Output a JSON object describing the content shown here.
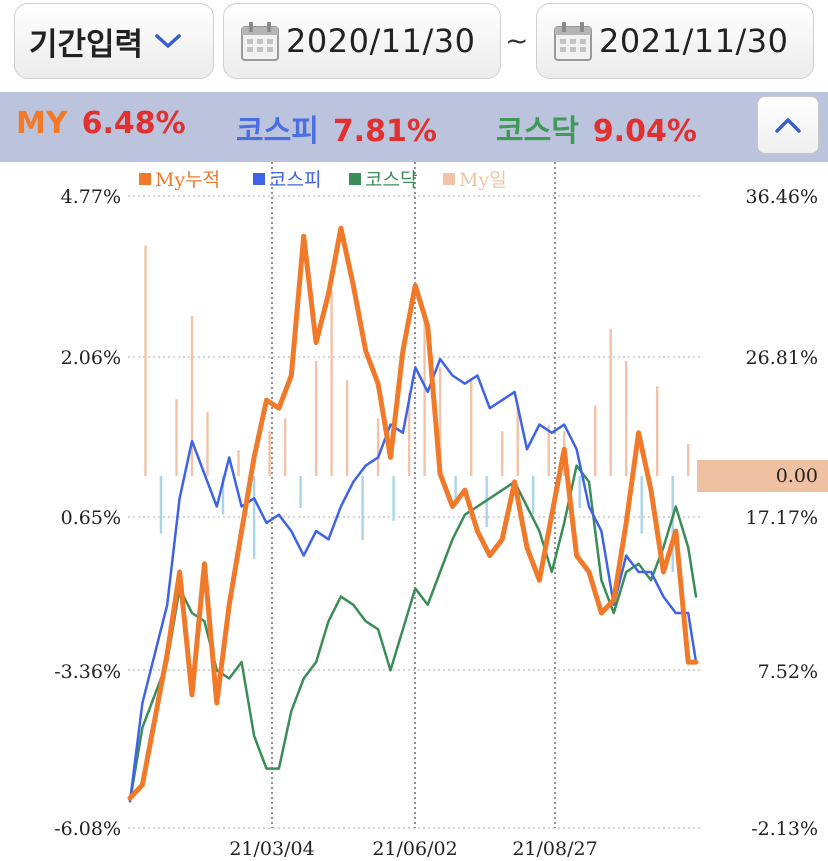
{
  "filter": {
    "period_label": "기간입력",
    "start_date": "2020/11/30",
    "separator": "~",
    "end_date": "2021/11/30"
  },
  "summary": {
    "items": [
      {
        "name": "MY",
        "value": "6.48%",
        "color": "#f07a2a"
      },
      {
        "name": "코스피",
        "value": "7.81%",
        "color": "#4a6fe3"
      },
      {
        "name": "코스닥",
        "value": "9.04%",
        "color": "#3f9a57"
      }
    ]
  },
  "chart_data": {
    "type": "line",
    "legend": [
      {
        "name": "My누적",
        "color": "#f07a2a"
      },
      {
        "name": "코스피",
        "color": "#3f63e6"
      },
      {
        "name": "코스닥",
        "color": "#3b8d57"
      },
      {
        "name": "My일",
        "color": "#f3c3a8"
      }
    ],
    "left_axis": {
      "ticks": [
        "4.77%",
        "2.06%",
        "0.65%",
        "-3.36%",
        "-6.08%"
      ]
    },
    "right_axis": {
      "ticks": [
        "36.46%",
        "26.81%",
        "17.17%",
        "7.52%",
        "-2.13%"
      ],
      "range": [
        -2.13,
        36.46
      ]
    },
    "zero_label": "0.00",
    "x_labels": [
      "21/03/04",
      "21/06/02",
      "21/08/27"
    ],
    "x_range": [
      "2020-11-30",
      "2021-11-30"
    ],
    "series": [
      {
        "name": "My누적",
        "color": "#f07a2a",
        "x": [
          "2020-11-30",
          "2020-12-08",
          "2020-12-16",
          "2020-12-24",
          "2021-01-01",
          "2021-01-09",
          "2021-01-17",
          "2021-01-25",
          "2021-02-02",
          "2021-02-10",
          "2021-02-18",
          "2021-02-26",
          "2021-03-06",
          "2021-03-14",
          "2021-03-22",
          "2021-03-30",
          "2021-04-07",
          "2021-04-15",
          "2021-04-23",
          "2021-05-01",
          "2021-05-09",
          "2021-05-17",
          "2021-05-25",
          "2021-06-02",
          "2021-06-10",
          "2021-06-18",
          "2021-06-26",
          "2021-07-04",
          "2021-07-12",
          "2021-07-20",
          "2021-07-28",
          "2021-08-05",
          "2021-08-13",
          "2021-08-21",
          "2021-08-29",
          "2021-09-06",
          "2021-09-14",
          "2021-09-22",
          "2021-09-30",
          "2021-10-08",
          "2021-10-16",
          "2021-10-24",
          "2021-11-01",
          "2021-11-09",
          "2021-11-17",
          "2021-11-25",
          "2021-11-30"
        ],
        "values": [
          -0.3,
          0.5,
          4.5,
          8.5,
          13.5,
          6.0,
          14.0,
          5.5,
          11.5,
          16.0,
          20.5,
          24.0,
          23.5,
          25.5,
          34.0,
          27.5,
          30.5,
          34.5,
          31.0,
          27.0,
          25.0,
          20.5,
          27.0,
          31.0,
          28.5,
          19.5,
          17.5,
          18.5,
          16.0,
          14.5,
          15.5,
          19.0,
          15.0,
          13.0,
          17.0,
          21.0,
          14.5,
          13.5,
          11.0,
          11.8,
          16.5,
          22.0,
          18.5,
          13.5,
          16.0,
          8.0,
          8.0
        ]
      },
      {
        "name": "코스피",
        "color": "#3f63e6",
        "x": [
          "2020-11-30",
          "2020-12-08",
          "2020-12-16",
          "2020-12-24",
          "2021-01-01",
          "2021-01-09",
          "2021-01-17",
          "2021-01-25",
          "2021-02-02",
          "2021-02-10",
          "2021-02-18",
          "2021-02-26",
          "2021-03-06",
          "2021-03-14",
          "2021-03-22",
          "2021-03-30",
          "2021-04-07",
          "2021-04-15",
          "2021-04-23",
          "2021-05-01",
          "2021-05-09",
          "2021-05-17",
          "2021-05-25",
          "2021-06-02",
          "2021-06-10",
          "2021-06-18",
          "2021-06-26",
          "2021-07-04",
          "2021-07-12",
          "2021-07-20",
          "2021-07-28",
          "2021-08-05",
          "2021-08-13",
          "2021-08-21",
          "2021-08-29",
          "2021-09-06",
          "2021-09-14",
          "2021-09-22",
          "2021-09-30",
          "2021-10-08",
          "2021-10-16",
          "2021-10-24",
          "2021-11-01",
          "2021-11-09",
          "2021-11-17",
          "2021-11-25",
          "2021-11-30"
        ],
        "values": [
          -0.5,
          5.5,
          8.5,
          11.5,
          18.0,
          21.5,
          19.5,
          17.5,
          20.5,
          17.5,
          18.0,
          16.5,
          17.0,
          16.0,
          14.5,
          16.0,
          15.5,
          17.5,
          19.0,
          20.0,
          20.5,
          22.5,
          22.0,
          26.0,
          24.5,
          26.5,
          25.5,
          25.0,
          25.5,
          23.5,
          24.0,
          24.5,
          21.0,
          22.5,
          22.0,
          22.5,
          21.0,
          17.5,
          16.0,
          11.5,
          14.5,
          13.5,
          13.5,
          12.0,
          11.0,
          11.0,
          8.0
        ]
      },
      {
        "name": "코스닥",
        "color": "#3b8d57",
        "x": [
          "2020-11-30",
          "2020-12-08",
          "2020-12-16",
          "2020-12-24",
          "2021-01-01",
          "2021-01-09",
          "2021-01-17",
          "2021-01-25",
          "2021-02-02",
          "2021-02-10",
          "2021-02-18",
          "2021-02-26",
          "2021-03-06",
          "2021-03-14",
          "2021-03-22",
          "2021-03-30",
          "2021-04-07",
          "2021-04-15",
          "2021-04-23",
          "2021-05-01",
          "2021-05-09",
          "2021-05-17",
          "2021-05-25",
          "2021-06-02",
          "2021-06-10",
          "2021-06-18",
          "2021-06-26",
          "2021-07-04",
          "2021-07-12",
          "2021-07-20",
          "2021-07-28",
          "2021-08-05",
          "2021-08-13",
          "2021-08-21",
          "2021-08-29",
          "2021-09-06",
          "2021-09-14",
          "2021-09-22",
          "2021-09-30",
          "2021-10-08",
          "2021-10-16",
          "2021-10-24",
          "2021-11-01",
          "2021-11-09",
          "2021-11-17",
          "2021-11-25",
          "2021-11-30"
        ],
        "values": [
          -0.5,
          4.0,
          6.0,
          8.0,
          12.5,
          11.0,
          10.5,
          7.5,
          7.0,
          8.0,
          3.5,
          1.5,
          1.5,
          5.0,
          7.0,
          8.0,
          10.5,
          12.0,
          11.5,
          10.5,
          10.0,
          7.5,
          10.0,
          12.5,
          11.5,
          13.5,
          15.5,
          17.0,
          17.5,
          18.0,
          18.5,
          19.0,
          17.5,
          16.0,
          13.5,
          16.5,
          20.0,
          19.0,
          13.0,
          11.0,
          13.5,
          14.0,
          13.0,
          15.0,
          17.5,
          15.0,
          12.0
        ]
      },
      {
        "name": "My일",
        "type": "bar",
        "color": "#f3c3a8",
        "neg_color": "#a9d4ea",
        "x": [
          "2020-12-10",
          "2020-12-20",
          "2020-12-30",
          "2021-01-09",
          "2021-01-19",
          "2021-01-29",
          "2021-02-08",
          "2021-02-18",
          "2021-02-28",
          "2021-03-10",
          "2021-03-20",
          "2021-03-30",
          "2021-04-09",
          "2021-04-19",
          "2021-04-29",
          "2021-05-09",
          "2021-05-19",
          "2021-05-29",
          "2021-06-08",
          "2021-06-18",
          "2021-06-28",
          "2021-07-08",
          "2021-07-18",
          "2021-07-28",
          "2021-08-07",
          "2021-08-17",
          "2021-08-27",
          "2021-09-06",
          "2021-09-16",
          "2021-09-26",
          "2021-10-06",
          "2021-10-16",
          "2021-10-26",
          "2021-11-05",
          "2021-11-15",
          "2021-11-25"
        ],
        "values": [
          3.6,
          -0.9,
          1.2,
          2.5,
          1.0,
          -0.6,
          0.4,
          -1.3,
          0.7,
          0.9,
          -0.5,
          1.8,
          2.9,
          1.5,
          -1.0,
          0.9,
          -0.7,
          1.3,
          2.6,
          1.7,
          -0.4,
          1.5,
          -0.8,
          0.7,
          1.1,
          -0.6,
          0.8,
          0.7,
          -0.5,
          1.1,
          2.3,
          1.8,
          -0.9,
          1.4,
          -1.5,
          0.5
        ]
      }
    ]
  }
}
